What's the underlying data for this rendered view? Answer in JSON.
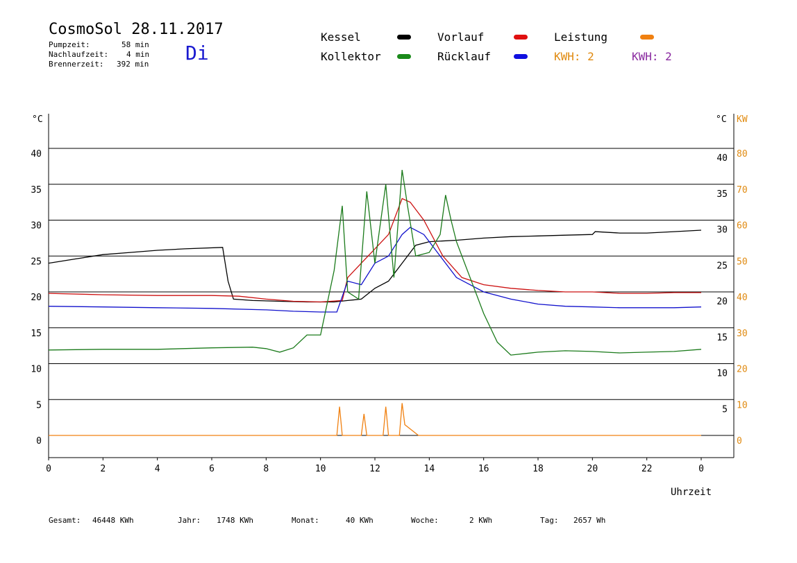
{
  "header": {
    "title": "CosmoSol 28.11.2017",
    "day": "Di",
    "stats": [
      {
        "label": "Pumpzeit:",
        "value": "58 min"
      },
      {
        "label": "Nachlaufzeit:",
        "value": "4 min"
      },
      {
        "label": "Brennerzeit:",
        "value": "392 min"
      }
    ]
  },
  "legend": {
    "kessel": {
      "label": "Kessel",
      "color": "#000000"
    },
    "kollektor": {
      "label": "Kollektor",
      "color": "#1a8a1a"
    },
    "vorlauf": {
      "label": "Vorlauf",
      "color": "#e01010"
    },
    "ruecklauf": {
      "label": "Rücklauf",
      "color": "#1010e0"
    },
    "leistung": {
      "label": "Leistung",
      "color": "#f08010"
    },
    "kwh1": {
      "label": "KWH: 2",
      "color": "#e08a10"
    },
    "kwh2": {
      "label": "KWH: 2",
      "color": "#8a2aa0"
    }
  },
  "footer": [
    {
      "label": "Gesamt:",
      "value": "46448 KWh"
    },
    {
      "label": "Jahr:",
      "value": "1748 KWh"
    },
    {
      "label": "Monat:",
      "value": "40 KWh"
    },
    {
      "label": "Woche:",
      "value": "2 KWh"
    },
    {
      "label": "Tag:",
      "value": "2657 Wh"
    }
  ],
  "chart_data": {
    "type": "line",
    "xlabel": "Uhrzeit",
    "ylabel_left": "°C",
    "ylabel_right_temp": "°C",
    "ylabel_right_power": "KW",
    "xlim": [
      0,
      24
    ],
    "ylim": [
      0,
      45
    ],
    "x_ticks": [
      "0",
      "2",
      "4",
      "6",
      "8",
      "10",
      "12",
      "14",
      "16",
      "18",
      "20",
      "22",
      "0"
    ],
    "y_ticks_left": [
      "0",
      "5",
      "10",
      "15",
      "20",
      "25",
      "30",
      "35",
      "40"
    ],
    "y_ticks_right_temp": [
      "5",
      "10",
      "15",
      "20",
      "25",
      "30",
      "35",
      "40"
    ],
    "y_ticks_right_power": [
      "0",
      "10",
      "20",
      "30",
      "40",
      "50",
      "60",
      "70",
      "80"
    ],
    "grid": true,
    "series": [
      {
        "name": "Kessel",
        "color": "#000000",
        "points": [
          [
            0,
            24
          ],
          [
            1,
            24.6
          ],
          [
            2,
            25.2
          ],
          [
            3,
            25.5
          ],
          [
            4,
            25.8
          ],
          [
            5,
            26
          ],
          [
            6.4,
            26.2
          ],
          [
            6.6,
            21.5
          ],
          [
            6.8,
            19
          ],
          [
            7.5,
            18.8
          ],
          [
            8.5,
            18.7
          ],
          [
            9.5,
            18.6
          ],
          [
            10.5,
            18.6
          ],
          [
            11,
            18.8
          ],
          [
            11.5,
            19
          ],
          [
            12,
            20.5
          ],
          [
            12.5,
            21.5
          ],
          [
            13,
            24
          ],
          [
            13.5,
            26.5
          ],
          [
            14,
            27
          ],
          [
            15,
            27.2
          ],
          [
            16,
            27.5
          ],
          [
            17,
            27.7
          ],
          [
            18,
            27.8
          ],
          [
            19,
            27.9
          ],
          [
            20,
            28
          ],
          [
            20.1,
            28.4
          ],
          [
            21,
            28.2
          ],
          [
            22,
            28.2
          ],
          [
            23,
            28.4
          ],
          [
            24,
            28.6
          ]
        ]
      },
      {
        "name": "Vorlauf",
        "color": "#cc1010",
        "points": [
          [
            0,
            19.8
          ],
          [
            2,
            19.6
          ],
          [
            4,
            19.5
          ],
          [
            6,
            19.5
          ],
          [
            7,
            19.4
          ],
          [
            8,
            19
          ],
          [
            9,
            18.7
          ],
          [
            10,
            18.6
          ],
          [
            10.8,
            18.8
          ],
          [
            11,
            22
          ],
          [
            11.5,
            24
          ],
          [
            12,
            26
          ],
          [
            12.5,
            28
          ],
          [
            13,
            33
          ],
          [
            13.3,
            32.5
          ],
          [
            13.8,
            30
          ],
          [
            14.5,
            25
          ],
          [
            15.2,
            22
          ],
          [
            16,
            21
          ],
          [
            17,
            20.5
          ],
          [
            18,
            20.2
          ],
          [
            19,
            20
          ],
          [
            20,
            20
          ],
          [
            21,
            19.8
          ],
          [
            22,
            19.8
          ],
          [
            23,
            19.9
          ],
          [
            24,
            19.9
          ]
        ]
      },
      {
        "name": "Rücklauf",
        "color": "#1010cc",
        "points": [
          [
            0,
            18
          ],
          [
            2,
            17.9
          ],
          [
            4,
            17.8
          ],
          [
            6,
            17.7
          ],
          [
            8,
            17.5
          ],
          [
            9,
            17.3
          ],
          [
            10,
            17.2
          ],
          [
            10.6,
            17.2
          ],
          [
            11,
            21.5
          ],
          [
            11.5,
            21
          ],
          [
            12,
            24
          ],
          [
            12.5,
            25
          ],
          [
            13,
            28
          ],
          [
            13.3,
            29
          ],
          [
            13.8,
            28
          ],
          [
            14.3,
            25.5
          ],
          [
            15,
            22
          ],
          [
            16,
            20
          ],
          [
            17,
            19
          ],
          [
            18,
            18.3
          ],
          [
            19,
            18
          ],
          [
            20,
            17.9
          ],
          [
            21,
            17.8
          ],
          [
            22,
            17.8
          ],
          [
            23,
            17.8
          ],
          [
            24,
            17.9
          ]
        ]
      },
      {
        "name": "Kollektor",
        "color": "#1a7a1a",
        "points": [
          [
            0,
            11.9
          ],
          [
            2,
            12
          ],
          [
            4,
            12
          ],
          [
            6,
            12.2
          ],
          [
            7.5,
            12.3
          ],
          [
            8,
            12.1
          ],
          [
            8.5,
            11.6
          ],
          [
            9,
            12.2
          ],
          [
            9.5,
            14
          ],
          [
            10,
            14
          ],
          [
            10.5,
            23
          ],
          [
            10.8,
            32
          ],
          [
            11,
            20
          ],
          [
            11.4,
            19
          ],
          [
            11.7,
            34
          ],
          [
            12,
            24
          ],
          [
            12.4,
            35
          ],
          [
            12.7,
            22
          ],
          [
            13,
            37
          ],
          [
            13.2,
            32
          ],
          [
            13.5,
            25
          ],
          [
            14,
            25.5
          ],
          [
            14.4,
            28
          ],
          [
            14.6,
            33.5
          ],
          [
            14.8,
            30
          ],
          [
            15,
            27
          ],
          [
            15.5,
            22
          ],
          [
            16,
            17
          ],
          [
            16.5,
            13
          ],
          [
            17,
            11.2
          ],
          [
            18,
            11.6
          ],
          [
            19,
            11.8
          ],
          [
            20,
            11.7
          ],
          [
            21,
            11.5
          ],
          [
            22,
            11.6
          ],
          [
            23,
            11.7
          ],
          [
            24,
            12
          ]
        ]
      },
      {
        "name": "Leistung",
        "color": "#f08010",
        "axis": "power",
        "points": [
          [
            0,
            0
          ],
          [
            10.6,
            0
          ],
          [
            10.7,
            8
          ],
          [
            10.8,
            0
          ],
          [
            11.5,
            0
          ],
          [
            11.6,
            6
          ],
          [
            11.7,
            0
          ],
          [
            12.3,
            0
          ],
          [
            12.4,
            8
          ],
          [
            12.5,
            0
          ],
          [
            12.9,
            0
          ],
          [
            13,
            9
          ],
          [
            13.1,
            3
          ],
          [
            13.6,
            0
          ],
          [
            24,
            0
          ]
        ]
      }
    ]
  }
}
